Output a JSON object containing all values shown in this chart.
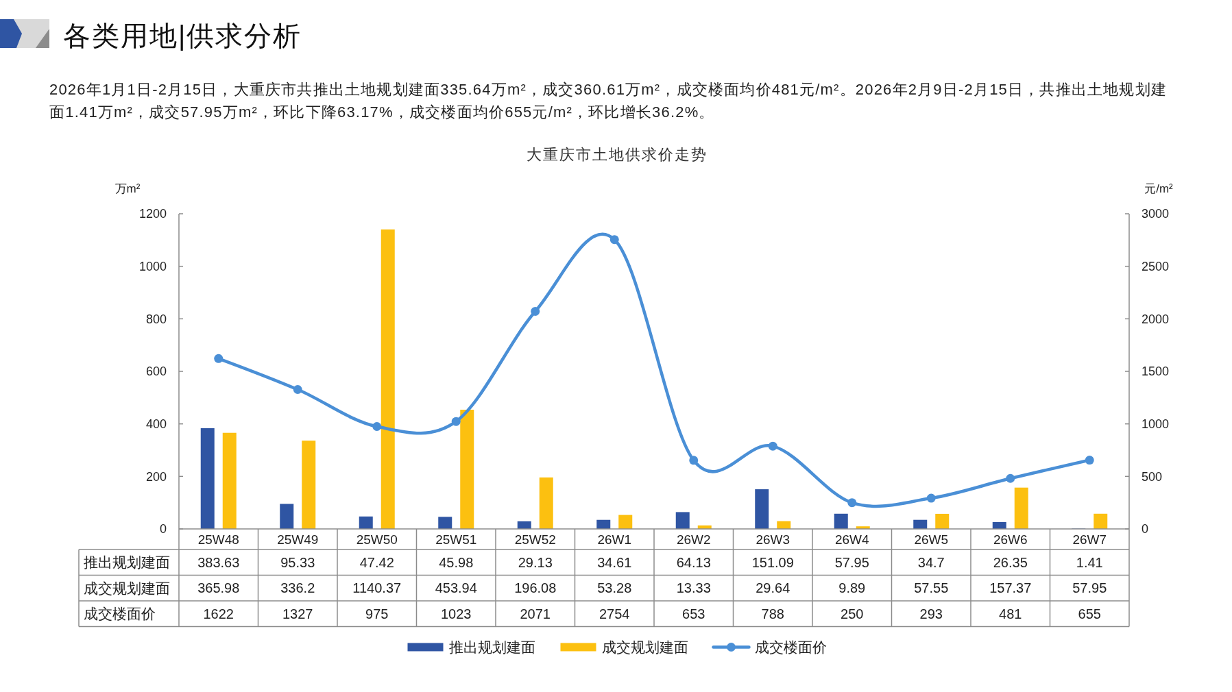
{
  "chart_data": {
    "type": "bar",
    "title": "各类用地|供求分析",
    "subtitle": "大重庆市土地供求价走势",
    "annotations": [
      "2026年1月1日-2月15日，大重庆市共推出土地规划建面335.64万m²，成交360.61万m²，成交楼面均价481元/m²。2026年2月9日-2月15日，共推出土地规划建面1.41万m²，成交57.95万m²，环比下降63.17%，成交楼面均价655元/m²，环比增长36.2%。"
    ],
    "ylabel": "万m²",
    "y2label": "元/m²",
    "categories": [
      "25W48",
      "25W49",
      "25W50",
      "25W51",
      "25W52",
      "26W1",
      "26W2",
      "26W3",
      "26W4",
      "26W5",
      "26W6",
      "26W7"
    ],
    "series": [
      {
        "name": "推出规划建面",
        "color": "#2f55a3",
        "values": [
          383.63,
          95.33,
          47.42,
          45.98,
          29.13,
          34.61,
          64.13,
          151.09,
          57.95,
          34.7,
          26.35,
          1.41
        ]
      },
      {
        "name": "成交规划建面",
        "color": "#fcc010",
        "values": [
          365.98,
          336.2,
          1140.37,
          453.94,
          196.08,
          53.28,
          13.33,
          29.64,
          9.89,
          57.55,
          157.37,
          57.95
        ]
      },
      {
        "name": "成交楼面价",
        "type": "line",
        "axis": "y2",
        "color": "#4a8fd6",
        "values": [
          1622,
          1327,
          975,
          1023,
          2071,
          2754,
          653,
          788,
          250,
          293,
          481,
          655
        ]
      }
    ],
    "ylim": [
      0,
      1200
    ],
    "yticks": [
      0,
      200,
      400,
      600,
      800,
      1000,
      1200
    ],
    "y2lim": [
      0,
      3000
    ],
    "y2ticks": [
      0,
      500,
      1000,
      1500,
      2000,
      2500,
      3000
    ],
    "data_labels": true,
    "legend": "bottom",
    "marker": "circle"
  }
}
